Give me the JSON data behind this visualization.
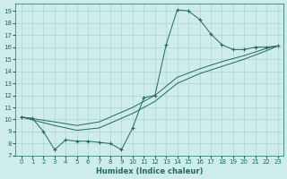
{
  "xlabel": "Humidex (Indice chaleur)",
  "bg_color": "#cdecea",
  "line_color": "#1e6b5e",
  "grid_color": "#aed6d2",
  "xlim": [
    -0.5,
    23.5
  ],
  "ylim": [
    7,
    19.6
  ],
  "xticks": [
    0,
    1,
    2,
    3,
    4,
    5,
    6,
    7,
    8,
    9,
    10,
    11,
    12,
    13,
    14,
    15,
    16,
    17,
    18,
    19,
    20,
    21,
    22,
    23
  ],
  "yticks": [
    7,
    8,
    9,
    10,
    11,
    12,
    13,
    14,
    15,
    16,
    17,
    18,
    19
  ],
  "series_zigzag": {
    "x": [
      0,
      1,
      2,
      3,
      4,
      5,
      6,
      7,
      8,
      9,
      10,
      11,
      12,
      13,
      14,
      15,
      16,
      17,
      18,
      19,
      20,
      21,
      22,
      23
    ],
    "y": [
      10.2,
      10.1,
      9.0,
      7.5,
      8.3,
      8.2,
      8.2,
      8.1,
      8.0,
      7.5,
      9.3,
      11.8,
      12.0,
      16.2,
      19.1,
      19.0,
      18.3,
      17.1,
      16.2,
      15.8,
      15.8,
      16.0,
      16.0,
      16.1
    ]
  },
  "series_line1": {
    "x": [
      0,
      23
    ],
    "y": [
      10.2,
      16.1
    ]
  },
  "series_line2": {
    "x": [
      0,
      23
    ],
    "y": [
      10.2,
      16.1
    ]
  },
  "regression_points1": {
    "x": [
      0,
      3,
      5,
      7,
      10,
      12,
      14,
      16,
      18,
      20,
      22,
      23
    ],
    "y": [
      10.2,
      9.8,
      9.5,
      9.8,
      11.0,
      12.0,
      13.5,
      14.2,
      14.8,
      15.3,
      15.9,
      16.1
    ]
  },
  "regression_points2": {
    "x": [
      0,
      3,
      5,
      7,
      10,
      12,
      14,
      16,
      18,
      20,
      22,
      23
    ],
    "y": [
      10.2,
      9.5,
      9.1,
      9.3,
      10.5,
      11.5,
      13.0,
      13.8,
      14.4,
      15.0,
      15.7,
      16.1
    ]
  }
}
